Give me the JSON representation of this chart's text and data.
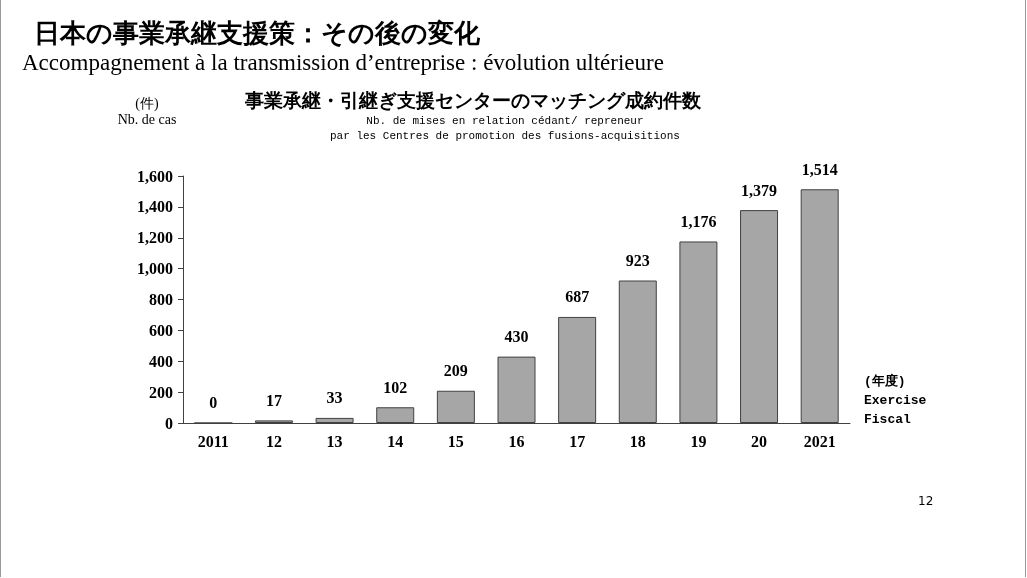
{
  "chart_data": {
    "type": "bar",
    "title": "日本の事業承継支援策：その後の変化",
    "subtitle": "Accompagnement à la transmission d’entreprise : évolution ultérieure",
    "annotations": [
      "事業承継・引継ぎ支援センターのマッチング成約件数",
      "Nb. de mises en relation cédant/ repreneur\npar les Centres de promotion des fusions-acquisitions",
      "12"
    ],
    "ylabel": "(件)\nNb. de cas",
    "xlabel": "(年度)\nExercise\nFiscal",
    "categories": [
      "2011",
      "12",
      "13",
      "14",
      "15",
      "16",
      "17",
      "18",
      "19",
      "20",
      "2021"
    ],
    "values": [
      0,
      17,
      33,
      102,
      209,
      430,
      687,
      923,
      1176,
      1379,
      1514
    ],
    "value_labels": [
      "0",
      "17",
      "33",
      "102",
      "209",
      "430",
      "687",
      "923",
      "1,176",
      "1,379",
      "1,514"
    ],
    "color": "#a6a6a6",
    "ylim": [
      0,
      1600
    ],
    "yticks": [
      0,
      200,
      400,
      600,
      800,
      {
        "value": 1000,
        "label": "1,000"
      },
      {
        "value": 1200,
        "label": "1,200"
      },
      {
        "value": 1400,
        "label": "1,400"
      },
      {
        "value": 1600,
        "label": "1,600"
      }
    ],
    "grid": false
  }
}
